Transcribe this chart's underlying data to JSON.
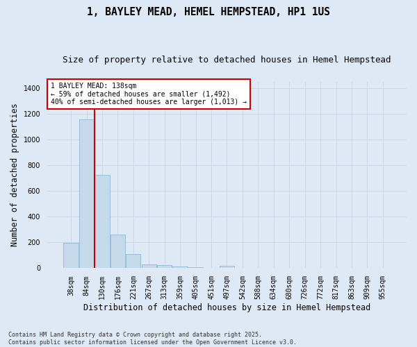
{
  "title": "1, BAYLEY MEAD, HEMEL HEMPSTEAD, HP1 1US",
  "subtitle": "Size of property relative to detached houses in Hemel Hempstead",
  "xlabel": "Distribution of detached houses by size in Hemel Hempstead",
  "ylabel": "Number of detached properties",
  "categories": [
    "38sqm",
    "84sqm",
    "130sqm",
    "176sqm",
    "221sqm",
    "267sqm",
    "313sqm",
    "359sqm",
    "405sqm",
    "451sqm",
    "497sqm",
    "542sqm",
    "588sqm",
    "634sqm",
    "680sqm",
    "726sqm",
    "772sqm",
    "817sqm",
    "863sqm",
    "909sqm",
    "955sqm"
  ],
  "values": [
    196,
    1155,
    728,
    260,
    110,
    32,
    25,
    14,
    8,
    0,
    18,
    5,
    0,
    0,
    0,
    0,
    0,
    0,
    0,
    0,
    0
  ],
  "bar_color": "#c5d9ea",
  "bar_edge_color": "#7fb3d3",
  "grid_color": "#ccd6e8",
  "background_color": "#dfe8f5",
  "vline_x": 1.5,
  "vline_color": "#cc0000",
  "ylim": [
    0,
    1450
  ],
  "yticks": [
    0,
    200,
    400,
    600,
    800,
    1000,
    1200,
    1400
  ],
  "annotation_text": "1 BAYLEY MEAD: 138sqm\n← 59% of detached houses are smaller (1,492)\n40% of semi-detached houses are larger (1,013) →",
  "footer_text": "Contains HM Land Registry data © Crown copyright and database right 2025.\nContains public sector information licensed under the Open Government Licence v3.0.",
  "title_fontsize": 10.5,
  "subtitle_fontsize": 9,
  "tick_fontsize": 7,
  "label_fontsize": 8.5,
  "ylabel_fontsize": 8.5
}
